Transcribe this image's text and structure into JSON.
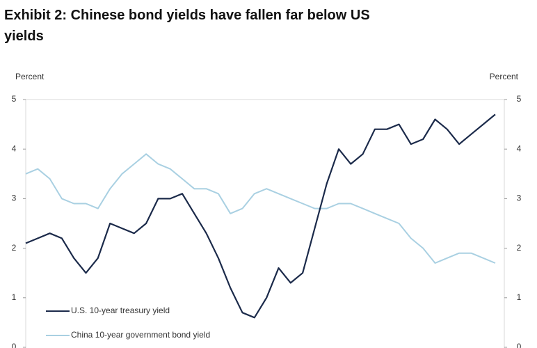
{
  "chart_data": {
    "type": "line",
    "title": "Exhibit 2: Chinese bond yields have fallen far below US yields",
    "ylabel": "Percent",
    "y2label": "Percent",
    "categories": [
      null,
      null,
      null,
      null,
      null,
      null,
      null,
      null,
      null,
      null,
      null,
      null,
      null,
      null,
      null,
      null,
      null,
      null,
      null,
      null,
      null,
      null,
      null,
      null,
      null,
      null,
      null,
      null,
      null,
      null,
      null,
      null,
      null,
      null,
      null,
      null,
      null,
      null,
      null,
      null
    ],
    "series": [
      {
        "name": "U.S. 10-year treasury yield",
        "color": "#1b2a4a",
        "values": [
          2.1,
          2.2,
          2.3,
          2.2,
          1.8,
          1.5,
          1.8,
          2.5,
          2.4,
          2.3,
          2.5,
          3.0,
          3.0,
          3.1,
          2.7,
          2.3,
          1.8,
          1.2,
          0.7,
          0.6,
          1.0,
          1.6,
          1.3,
          1.5,
          2.4,
          3.3,
          4.0,
          3.7,
          3.9,
          4.4,
          4.4,
          4.5,
          4.1,
          4.2,
          4.6,
          4.4,
          4.1,
          4.3,
          4.5,
          4.7
        ]
      },
      {
        "name": "China 10-year government bond yield",
        "color": "#a9d0e2",
        "values": [
          3.5,
          3.6,
          3.4,
          3.0,
          2.9,
          2.9,
          2.8,
          3.2,
          3.5,
          3.7,
          3.9,
          3.7,
          3.6,
          3.4,
          3.2,
          3.2,
          3.1,
          2.7,
          2.8,
          3.1,
          3.2,
          3.1,
          3.0,
          2.9,
          2.8,
          2.8,
          2.9,
          2.9,
          2.8,
          2.7,
          2.6,
          2.5,
          2.2,
          2.0,
          1.7,
          1.8,
          1.9,
          1.9,
          1.8,
          1.7
        ]
      }
    ],
    "ylim": [
      0,
      5
    ],
    "yticks": [
      0,
      1,
      2,
      3,
      4,
      5
    ],
    "y2lim": [
      0,
      5
    ],
    "y2ticks": [
      0,
      1,
      2,
      3,
      4,
      5
    ],
    "legend": "lower left"
  }
}
